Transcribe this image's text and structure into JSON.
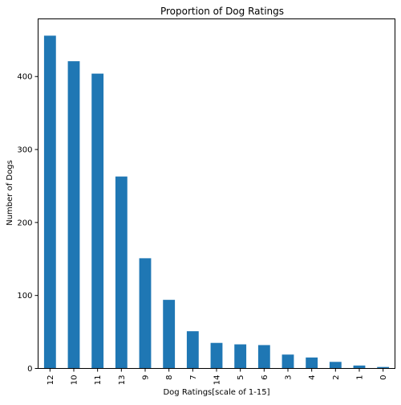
{
  "chart_data": {
    "type": "bar",
    "title": "Proportion of Dog Ratings",
    "xlabel": "Dog Ratings[scale of 1-15]",
    "ylabel": "Number of Dogs",
    "categories": [
      "12",
      "10",
      "11",
      "13",
      "9",
      "8",
      "7",
      "14",
      "5",
      "6",
      "3",
      "4",
      "2",
      "1",
      "0"
    ],
    "values": [
      456,
      421,
      404,
      263,
      151,
      94,
      51,
      35,
      33,
      32,
      19,
      15,
      9,
      4,
      2
    ],
    "ylim": [
      0,
      479
    ],
    "yticks": [
      0,
      100,
      200,
      300,
      400
    ],
    "grid": false,
    "legend": "none",
    "bar_color": "#1f77b4"
  }
}
